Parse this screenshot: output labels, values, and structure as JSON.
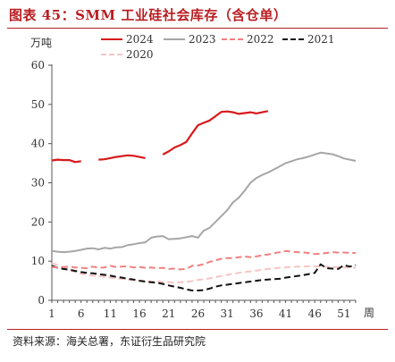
{
  "header": {
    "title": "图表 45：SMM 工业硅社会库存（含仓单）"
  },
  "footer": {
    "source": "资料来源：海关总署，东证衍生品研究院"
  },
  "chart_data": {
    "type": "line",
    "title": "",
    "ylabel": "万吨",
    "xlabel": "周",
    "xlim": [
      1,
      53
    ],
    "ylim": [
      0,
      60
    ],
    "xticks": [
      1,
      6,
      11,
      16,
      21,
      26,
      31,
      36,
      41,
      46,
      51
    ],
    "yticks": [
      0,
      10,
      20,
      30,
      40,
      50,
      60
    ],
    "grid": false,
    "legend_position": "top",
    "series": [
      {
        "name": "2024",
        "color": "#d7191c",
        "style": "solid",
        "x": [
          1,
          2,
          3,
          4,
          5,
          6,
          9,
          10,
          11,
          12,
          13,
          14,
          15,
          16,
          17,
          20,
          21,
          22,
          23,
          24,
          25,
          26,
          27,
          28,
          29,
          30,
          31,
          32,
          33,
          34,
          35,
          36,
          37,
          38
        ],
        "values": [
          35.7,
          35.9,
          35.8,
          35.8,
          35.3,
          35.5,
          35.9,
          36.0,
          36.3,
          36.6,
          36.8,
          37.0,
          36.9,
          36.6,
          36.3,
          37.2,
          38.0,
          39.0,
          39.6,
          40.4,
          42.6,
          44.7,
          45.3,
          45.9,
          47.0,
          48.1,
          48.2,
          48.0,
          47.6,
          47.8,
          48.0,
          47.7,
          48.0,
          48.3
        ]
      },
      {
        "name": "2023",
        "color": "#a6a6a6",
        "style": "solid",
        "x": [
          1,
          2,
          3,
          4,
          5,
          6,
          7,
          8,
          9,
          10,
          11,
          12,
          13,
          14,
          15,
          16,
          17,
          18,
          19,
          20,
          21,
          22,
          23,
          24,
          25,
          26,
          27,
          28,
          29,
          30,
          31,
          32,
          33,
          34,
          35,
          36,
          37,
          38,
          39,
          40,
          41,
          42,
          43,
          44,
          45,
          46,
          47,
          48,
          49,
          50,
          51,
          52,
          53
        ],
        "values": [
          12.6,
          12.4,
          12.3,
          12.4,
          12.6,
          12.9,
          13.2,
          13.3,
          13.0,
          13.4,
          13.2,
          13.5,
          13.6,
          14.1,
          14.3,
          14.6,
          14.8,
          16.0,
          16.3,
          16.4,
          15.6,
          15.7,
          15.8,
          16.1,
          16.4,
          16.0,
          17.8,
          18.5,
          20.0,
          21.5,
          23.0,
          25.0,
          26.2,
          28.0,
          30.0,
          31.2,
          32.0,
          32.6,
          33.4,
          34.2,
          35.0,
          35.5,
          36.0,
          36.3,
          36.7,
          37.2,
          37.7,
          37.5,
          37.3,
          36.8,
          36.2,
          35.9,
          35.6
        ]
      },
      {
        "name": "2022",
        "color": "#f08080",
        "style": "dashed",
        "x": [
          1,
          2,
          3,
          4,
          5,
          6,
          7,
          8,
          9,
          10,
          11,
          12,
          13,
          14,
          15,
          16,
          17,
          18,
          19,
          20,
          21,
          22,
          23,
          24,
          25,
          26,
          27,
          28,
          29,
          30,
          31,
          32,
          33,
          34,
          35,
          36,
          37,
          38,
          39,
          40,
          41,
          42,
          43,
          44,
          45,
          46,
          47,
          48,
          49,
          50,
          51,
          52,
          53
        ],
        "values": [
          8.5,
          8.4,
          8.5,
          8.6,
          8.4,
          8.3,
          8.2,
          8.6,
          8.3,
          8.4,
          8.8,
          8.5,
          8.6,
          8.7,
          8.4,
          8.5,
          8.3,
          8.4,
          8.2,
          8.3,
          8.0,
          8.1,
          7.9,
          8.0,
          8.8,
          8.9,
          9.2,
          9.8,
          10.2,
          10.6,
          10.8,
          10.8,
          11.0,
          11.2,
          11.0,
          11.2,
          11.5,
          11.7,
          12.0,
          12.3,
          12.6,
          12.4,
          12.3,
          12.2,
          12.1,
          11.8,
          11.9,
          12.1,
          12.3,
          12.2,
          12.2,
          12.1,
          12.1
        ]
      },
      {
        "name": "2021",
        "color": "#111111",
        "style": "dashed",
        "x": [
          1,
          2,
          3,
          4,
          5,
          6,
          7,
          8,
          9,
          10,
          11,
          12,
          13,
          14,
          15,
          16,
          17,
          18,
          19,
          20,
          21,
          22,
          23,
          24,
          25,
          26,
          27,
          28,
          29,
          30,
          31,
          32,
          33,
          34,
          35,
          36,
          37,
          38,
          39,
          40,
          41,
          42,
          43,
          44,
          45,
          46,
          47,
          48,
          49,
          50,
          51,
          52,
          53
        ],
        "values": [
          8.8,
          8.3,
          8.0,
          7.8,
          7.5,
          7.2,
          7.0,
          6.9,
          6.7,
          6.5,
          6.3,
          6.0,
          5.8,
          5.5,
          5.3,
          5.0,
          4.8,
          4.6,
          4.5,
          4.2,
          3.8,
          3.5,
          3.2,
          2.8,
          2.5,
          2.5,
          2.6,
          3.0,
          3.5,
          3.8,
          4.0,
          4.2,
          4.4,
          4.6,
          4.8,
          5.0,
          5.2,
          5.3,
          5.4,
          5.5,
          5.8,
          6.0,
          6.2,
          6.4,
          6.7,
          7.0,
          9.2,
          8.2,
          8.1,
          8.0,
          9.0,
          8.6,
          9.0
        ]
      },
      {
        "name": "2020",
        "color": "#f6c4c4",
        "style": "dashed",
        "x": [
          1,
          2,
          3,
          4,
          5,
          6,
          7,
          8,
          9,
          10,
          11,
          12,
          13,
          14,
          15,
          16,
          17,
          18,
          19,
          20,
          21,
          22,
          23,
          24,
          25,
          26,
          27,
          28,
          29,
          30,
          31,
          32,
          33,
          34,
          35,
          36,
          37,
          38,
          39,
          40,
          41,
          42,
          43,
          44,
          45,
          46,
          47,
          48,
          49,
          50,
          51,
          52,
          53
        ],
        "values": [
          9.5,
          9.0,
          8.3,
          7.8,
          7.2,
          6.8,
          6.5,
          6.3,
          6.2,
          6.0,
          5.8,
          5.6,
          5.5,
          5.3,
          5.2,
          5.0,
          4.9,
          4.8,
          4.8,
          4.7,
          4.6,
          4.5,
          4.6,
          4.7,
          4.9,
          5.2,
          5.4,
          5.6,
          5.9,
          6.2,
          6.5,
          6.8,
          7.0,
          7.2,
          7.4,
          7.6,
          7.8,
          8.0,
          8.2,
          8.3,
          8.4,
          8.5,
          8.6,
          8.6,
          8.7,
          8.7,
          8.6,
          8.6,
          8.5,
          8.5,
          8.4,
          8.4,
          8.3
        ]
      }
    ]
  }
}
